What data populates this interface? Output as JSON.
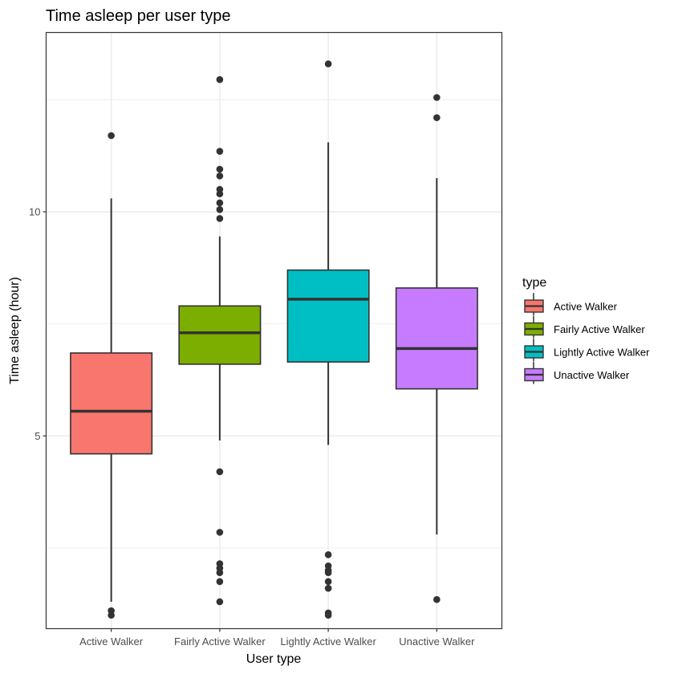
{
  "chart_data": {
    "type": "box",
    "title": "Time asleep per user type",
    "xlabel": "User type",
    "ylabel": "Time asleep (hour)",
    "ylim": [
      0.7,
      14.0
    ],
    "y_ticks": [
      5,
      10
    ],
    "y_tick_labels": [
      "5",
      "10"
    ],
    "grid": true,
    "legend": {
      "title": "type",
      "position": "right"
    },
    "categories": [
      "Active Walker",
      "Fairly Active Walker",
      "Lightly Active Walker",
      "Unactive Walker"
    ],
    "series": [
      {
        "name": "Active Walker",
        "color": "#F8766D",
        "q1": 4.6,
        "median": 5.55,
        "q3": 6.85,
        "whisker_low": 1.3,
        "whisker_high": 10.3,
        "outliers": [
          11.7,
          1.1,
          1.0
        ]
      },
      {
        "name": "Fairly Active Walker",
        "color": "#7CAE00",
        "q1": 6.6,
        "median": 7.3,
        "q3": 7.9,
        "whisker_low": 4.9,
        "whisker_high": 9.45,
        "outliers": [
          12.95,
          11.35,
          10.95,
          10.8,
          10.5,
          10.4,
          10.2,
          10.05,
          9.85,
          4.2,
          2.85,
          2.15,
          2.05,
          1.95,
          1.75,
          1.3
        ]
      },
      {
        "name": "Lightly Active Walker",
        "color": "#00BFC4",
        "q1": 6.65,
        "median": 8.05,
        "q3": 8.7,
        "whisker_low": 4.8,
        "whisker_high": 11.55,
        "outliers": [
          13.3,
          2.35,
          2.1,
          2.0,
          1.95,
          1.75,
          1.6,
          1.05,
          1.0
        ]
      },
      {
        "name": "Unactive Walker",
        "color": "#C77CFF",
        "q1": 6.05,
        "median": 6.95,
        "q3": 8.3,
        "whisker_low": 2.8,
        "whisker_high": 10.75,
        "outliers": [
          12.55,
          12.1,
          1.35
        ]
      }
    ]
  }
}
